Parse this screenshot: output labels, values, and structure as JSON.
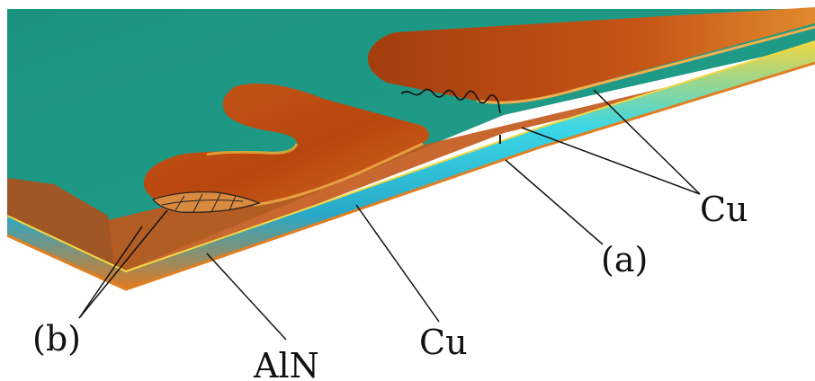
{
  "labels": {
    "cu_top": "Cu",
    "marker_a": "(a)",
    "cu_bottom": "Cu",
    "marker_b": "(b)",
    "aln": "AlN"
  },
  "colors": {
    "ceramic": "#1f9a86",
    "copper_dark": "#a33a0d",
    "copper_mid": "#c85a16",
    "copper_light": "#e18a2a",
    "edge_yellow": "#e8d23a",
    "edge_cyan": "#36d6e6",
    "line": "#111111"
  }
}
